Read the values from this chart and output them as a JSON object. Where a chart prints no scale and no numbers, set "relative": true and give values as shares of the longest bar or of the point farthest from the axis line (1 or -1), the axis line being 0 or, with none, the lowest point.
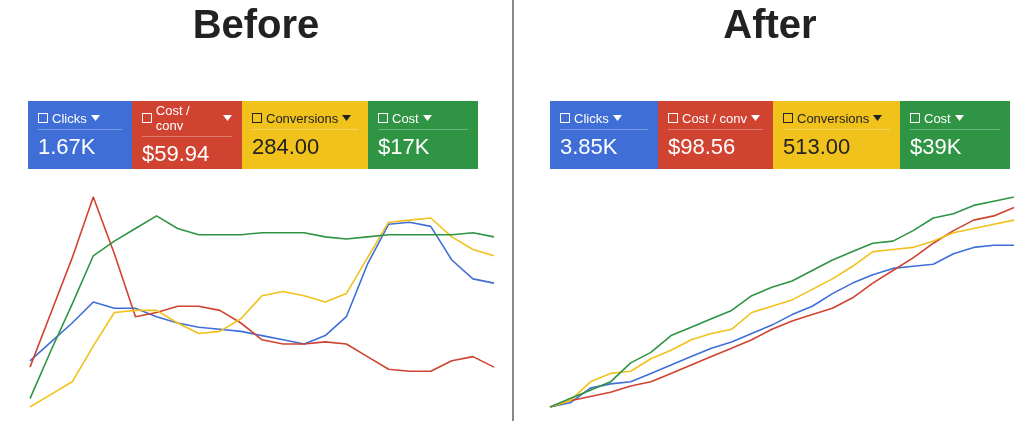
{
  "chart_data": [
    {
      "type": "line",
      "title": "Before",
      "relative": true,
      "legend": "top left",
      "marker": "none",
      "categories": [
        null,
        null,
        null,
        null,
        null,
        null,
        null,
        null,
        null,
        null,
        null,
        null,
        null,
        null,
        null,
        null,
        null,
        null,
        null,
        null,
        null,
        null,
        null
      ],
      "annotations": [
        "1.67K",
        "$59.94",
        "284.00",
        "$17K"
      ],
      "series": [
        {
          "name": "Clicks",
          "color": "#3f6fd6",
          "values": [
            0.22,
            0.31,
            0.4,
            0.5,
            0.47,
            0.47,
            0.43,
            0.4,
            0.38,
            0.37,
            0.36,
            0.34,
            0.32,
            0.3,
            0.34,
            0.43,
            0.68,
            0.87,
            0.88,
            0.86,
            0.7,
            0.61,
            0.59
          ]
        },
        {
          "name": "Cost / conv",
          "color": "#cf4330",
          "values": [
            0.19,
            0.45,
            0.71,
            1,
            0.73,
            0.43,
            0.45,
            0.48,
            0.48,
            0.46,
            0.4,
            0.32,
            0.3,
            0.3,
            0.31,
            0.3,
            0.24,
            0.18,
            0.17,
            0.17,
            0.22,
            0.24,
            0.19
          ]
        },
        {
          "name": "Conversions",
          "color": "#f1c21b",
          "values": [
            0,
            0.06,
            0.12,
            0.29,
            0.45,
            0.46,
            0.46,
            0.4,
            0.35,
            0.36,
            0.42,
            0.53,
            0.55,
            0.53,
            0.5,
            0.54,
            0.71,
            0.88,
            0.89,
            0.9,
            0.81,
            0.75,
            0.72
          ]
        },
        {
          "name": "Cost",
          "color": "#2f9444",
          "values": [
            0.04,
            0.27,
            0.49,
            0.72,
            0.79,
            0.85,
            0.91,
            0.85,
            0.82,
            0.82,
            0.82,
            0.83,
            0.83,
            0.83,
            0.81,
            0.8,
            0.81,
            0.82,
            0.82,
            0.82,
            0.82,
            0.83,
            0.81
          ]
        }
      ]
    },
    {
      "type": "line",
      "title": "After",
      "relative": true,
      "legend": "top left",
      "marker": "none",
      "categories": [
        null,
        null,
        null,
        null,
        null,
        null,
        null,
        null,
        null,
        null,
        null,
        null,
        null,
        null,
        null,
        null,
        null,
        null,
        null,
        null,
        null,
        null,
        null,
        null
      ],
      "annotations": [
        "3.85K",
        "$98.56",
        "513.00",
        "$39K"
      ],
      "series": [
        {
          "name": "Clicks",
          "color": "#3f6fd6",
          "values": [
            0,
            0.02,
            0.09,
            0.11,
            0.12,
            0.16,
            0.2,
            0.24,
            0.28,
            0.31,
            0.35,
            0.39,
            0.44,
            0.48,
            0.54,
            0.59,
            0.63,
            0.66,
            0.67,
            0.68,
            0.73,
            0.76,
            0.77,
            0.77
          ]
        },
        {
          "name": "Cost / conv",
          "color": "#cf4330",
          "values": [
            0,
            0.03,
            0.05,
            0.07,
            0.1,
            0.12,
            0.16,
            0.2,
            0.24,
            0.28,
            0.32,
            0.37,
            0.41,
            0.44,
            0.47,
            0.52,
            0.59,
            0.65,
            0.71,
            0.78,
            0.84,
            0.89,
            0.91,
            0.95
          ]
        },
        {
          "name": "Conversions",
          "color": "#f1c21b",
          "values": [
            0,
            0.03,
            0.12,
            0.16,
            0.17,
            0.23,
            0.27,
            0.32,
            0.35,
            0.37,
            0.45,
            0.48,
            0.51,
            0.56,
            0.61,
            0.67,
            0.74,
            0.75,
            0.76,
            0.79,
            0.83,
            0.85,
            0.87,
            0.89
          ]
        },
        {
          "name": "Cost",
          "color": "#2f9444",
          "values": [
            0,
            0.04,
            0.08,
            0.12,
            0.21,
            0.26,
            0.34,
            0.38,
            0.42,
            0.46,
            0.53,
            0.57,
            0.6,
            0.65,
            0.7,
            0.74,
            0.78,
            0.79,
            0.84,
            0.9,
            0.92,
            0.96,
            0.98,
            1
          ]
        }
      ]
    }
  ]
}
